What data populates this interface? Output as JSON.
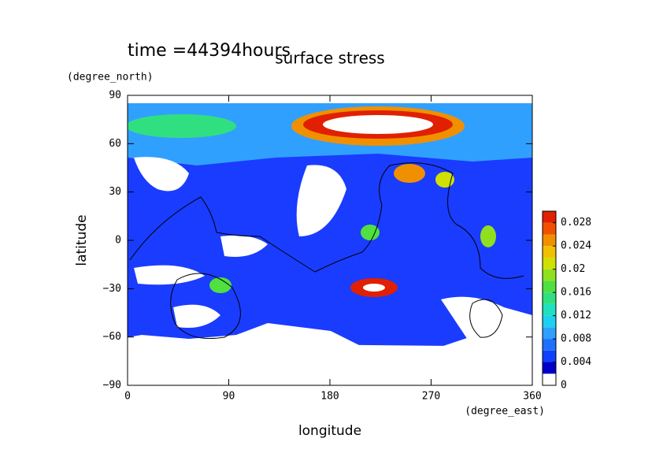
{
  "chart_data": {
    "type": "contour",
    "title": "surface stress",
    "subtitle": "time =44394hours",
    "x_label": "longitude",
    "x_units": "(degree_east)",
    "y_label": "latitude",
    "y_units": "(degree_north)",
    "xlim": [
      0,
      360
    ],
    "xticks": [
      0,
      90,
      180,
      270,
      360
    ],
    "ylim": [
      -90,
      90
    ],
    "yticks": [
      {
        "value": -90,
        "label": "−90"
      },
      {
        "value": -60,
        "label": "−60"
      },
      {
        "value": -30,
        "label": "−30"
      },
      0,
      30,
      60,
      90
    ],
    "colorbar": {
      "lim": [
        0,
        0.03
      ],
      "ticks": [
        0,
        0.004,
        0.008,
        0.012,
        0.016,
        0.02,
        0.024,
        0.028
      ],
      "levels": [
        0,
        0.002,
        0.004,
        0.006,
        0.008,
        0.01,
        0.012,
        0.014,
        0.016,
        0.018,
        0.02,
        0.022,
        0.024,
        0.026,
        0.028,
        0.03
      ],
      "colors": [
        "#ffffff",
        "#0000c8",
        "#1040ff",
        "#2070ff",
        "#30a0ff",
        "#20d0f0",
        "#20e0c0",
        "#30e080",
        "#50e040",
        "#90e020",
        "#d0e000",
        "#f0c000",
        "#f09000",
        "#f05000",
        "#e02000"
      ]
    }
  }
}
